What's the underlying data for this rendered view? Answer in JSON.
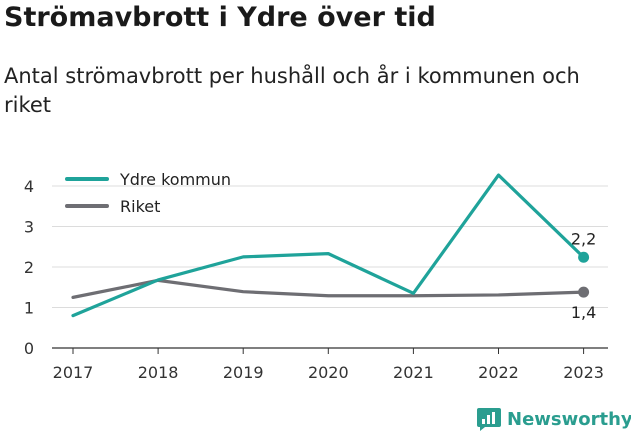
{
  "header": {
    "title": "Strömavbrott i Ydre över tid",
    "subtitle": "Antal strömavbrott per hushåll och år i kommunen och riket"
  },
  "branding": {
    "name": "Newsworthy",
    "icon": "bar-chart-logo-icon",
    "color": "#2a9d8f"
  },
  "chart_data": {
    "type": "line",
    "title": "Strömavbrott i Ydre över tid",
    "subtitle": "Antal strömavbrott per hushåll och år i kommunen och riket",
    "xlabel": "",
    "ylabel": "",
    "x": [
      "2017",
      "2018",
      "2019",
      "2020",
      "2021",
      "2022",
      "2023"
    ],
    "ylim": [
      0,
      4.4
    ],
    "yticks": [
      "0",
      "1",
      "2",
      "3",
      "4"
    ],
    "grid": true,
    "legend_placement": "top-left",
    "series": [
      {
        "name": "Ydre kommun",
        "color": "#1fa39a",
        "values": [
          0.8,
          1.68,
          2.25,
          2.33,
          1.35,
          4.27,
          2.24
        ],
        "end_label": "2,2"
      },
      {
        "name": "Riket",
        "color": "#6e6e73",
        "values": [
          1.25,
          1.67,
          1.39,
          1.29,
          1.29,
          1.31,
          1.38
        ],
        "end_label": "1,4"
      }
    ]
  }
}
